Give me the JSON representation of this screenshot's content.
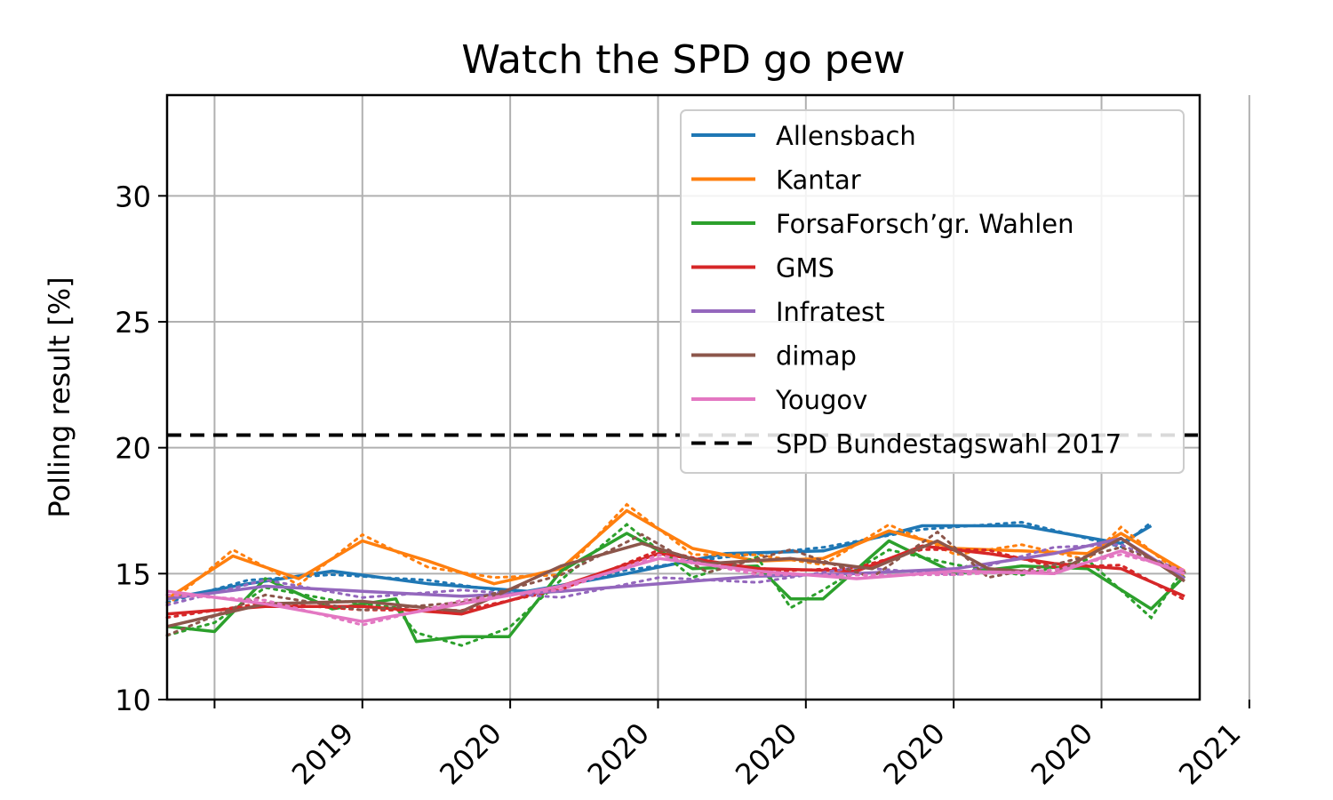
{
  "chart_data": {
    "type": "line",
    "title": "Watch the SPD go pew",
    "ylabel": "Polling result [%]",
    "xlabel": "",
    "ylim": [
      10,
      34
    ],
    "xlim": [
      "2018-09-01",
      "2021-04-15"
    ],
    "yticks": [
      10,
      15,
      20,
      25,
      30
    ],
    "xtick_labels": [
      "",
      "2019",
      "2020",
      "2020",
      "2020",
      "2020",
      "2020",
      "2021"
    ],
    "grid": true,
    "legend_position": "top-right",
    "reference_line": {
      "name": "SPD Bundestagswahl 2017",
      "value": 20.5,
      "color": "#000000",
      "style": "dashed"
    },
    "series": [
      {
        "name": "Allensbach",
        "color": "#1f77b4",
        "x": [
          "2018-09-01",
          "2018-11-15",
          "2019-02-01",
          "2019-05-01",
          "2019-08-01",
          "2019-11-01",
          "2020-02-01",
          "2020-05-01",
          "2020-08-01",
          "2020-11-01",
          "2021-02-01",
          "2021-03-01"
        ],
        "y": [
          14.0,
          14.6,
          15.1,
          14.6,
          14.3,
          15.0,
          15.8,
          15.9,
          16.9,
          16.9,
          16.2,
          16.9
        ]
      },
      {
        "name": "Kantar",
        "color": "#ff7f0e",
        "x": [
          "2018-09-01",
          "2018-11-01",
          "2019-01-01",
          "2019-03-01",
          "2019-05-01",
          "2019-07-01",
          "2019-09-01",
          "2019-11-01",
          "2020-01-01",
          "2020-03-01",
          "2020-05-01",
          "2020-07-01",
          "2020-09-01",
          "2020-11-01",
          "2021-01-01",
          "2021-02-01",
          "2021-04-01"
        ],
        "y": [
          14.0,
          15.7,
          14.8,
          16.3,
          15.5,
          14.6,
          15.2,
          17.5,
          16.0,
          15.5,
          15.6,
          16.7,
          16.0,
          15.9,
          15.8,
          16.6,
          15.1
        ]
      },
      {
        "name": "ForsaForsch’gr. Wahlen",
        "color": "#2ca02c",
        "x": [
          "2018-09-01",
          "2018-10-15",
          "2018-12-01",
          "2019-02-01",
          "2019-04-01",
          "2019-04-20",
          "2019-06-01",
          "2019-07-15",
          "2019-09-01",
          "2019-11-01",
          "2020-01-01",
          "2020-03-01",
          "2020-04-01",
          "2020-05-01",
          "2020-07-01",
          "2020-09-01",
          "2020-11-01",
          "2021-01-01",
          "2021-03-01",
          "2021-04-01"
        ],
        "y": [
          12.9,
          12.7,
          14.8,
          13.6,
          14.0,
          12.3,
          12.5,
          12.5,
          15.1,
          16.6,
          15.2,
          15.3,
          14.0,
          14.0,
          16.3,
          15.0,
          15.3,
          15.2,
          13.6,
          14.9
        ]
      },
      {
        "name": "GMS",
        "color": "#d62728",
        "x": [
          "2018-09-01",
          "2018-12-01",
          "2019-03-01",
          "2019-06-01",
          "2019-09-01",
          "2019-12-01",
          "2020-03-01",
          "2020-06-01",
          "2020-08-01",
          "2020-10-01",
          "2020-12-01",
          "2021-02-01",
          "2021-04-01"
        ],
        "y": [
          13.4,
          13.7,
          13.7,
          13.4,
          14.5,
          15.8,
          15.2,
          15.1,
          16.1,
          15.8,
          15.4,
          15.2,
          14.1
        ]
      },
      {
        "name": "Infratest",
        "color": "#9467bd",
        "x": [
          "2018-09-01",
          "2018-12-01",
          "2019-03-01",
          "2019-06-01",
          "2019-09-01",
          "2019-12-01",
          "2020-03-01",
          "2020-06-01",
          "2020-09-01",
          "2020-12-01",
          "2021-02-01",
          "2021-04-01"
        ],
        "y": [
          14.0,
          14.5,
          14.3,
          14.1,
          14.3,
          14.6,
          14.9,
          15.0,
          15.2,
          15.8,
          16.4,
          14.8
        ]
      },
      {
        "name": "dimap",
        "color": "#8c564b",
        "x": [
          "2018-09-01",
          "2018-12-01",
          "2019-03-01",
          "2019-06-01",
          "2019-09-01",
          "2019-11-15",
          "2020-01-15",
          "2020-04-01",
          "2020-06-15",
          "2020-08-15",
          "2020-10-01",
          "2020-12-01",
          "2021-02-01",
          "2021-04-01"
        ],
        "y": [
          12.9,
          13.8,
          13.9,
          13.5,
          15.3,
          16.2,
          15.4,
          15.6,
          15.2,
          16.3,
          15.2,
          15.0,
          16.4,
          14.7
        ]
      },
      {
        "name": "Yougov",
        "color": "#e377c2",
        "x": [
          "2018-09-01",
          "2018-12-01",
          "2019-03-01",
          "2019-06-01",
          "2019-09-01",
          "2019-12-01",
          "2020-03-01",
          "2020-06-01",
          "2020-09-01",
          "2020-12-01",
          "2021-02-01",
          "2021-04-01"
        ],
        "y": [
          14.3,
          13.8,
          13.1,
          13.8,
          14.5,
          15.6,
          15.1,
          14.8,
          15.1,
          15.0,
          15.9,
          15.0
        ]
      }
    ]
  }
}
